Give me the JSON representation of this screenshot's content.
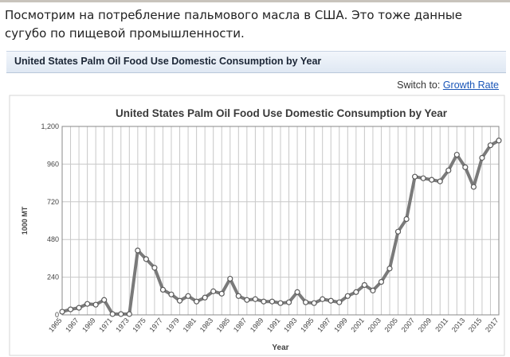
{
  "intro_text": "Посмотрим на потребление пальмового масла в США. Это тоже данные сугубо по пищевой промышленности.",
  "header": {
    "title": "United States Palm Oil Food Use Domestic Consumption by Year"
  },
  "switch": {
    "label": "Switch to:",
    "link": "Growth Rate"
  },
  "colors": {
    "line": "#7a7a7a",
    "grid": "#c8c8c8",
    "header_bg": "#dfe8f3",
    "link": "#1a56b8"
  },
  "chart_data": {
    "type": "line",
    "title": "United States Palm Oil Food Use Domestic Consumption by Year",
    "xlabel": "Year",
    "ylabel": "1000 MT",
    "ylim": [
      0,
      1200
    ],
    "yticks": [
      "1,200",
      "960",
      "720",
      "480",
      "240",
      "0"
    ],
    "xticks": [
      "1965",
      "1967",
      "1969",
      "1971",
      "1973",
      "1975",
      "1977",
      "1979",
      "1981",
      "1983",
      "1985",
      "1987",
      "1989",
      "1991",
      "1993",
      "1995",
      "1997",
      "1999",
      "2001",
      "2003",
      "2005",
      "2007",
      "2009",
      "2011",
      "2013",
      "2015",
      "2017"
    ],
    "grid": true,
    "x": [
      1965,
      1966,
      1967,
      1968,
      1969,
      1970,
      1971,
      1972,
      1973,
      1974,
      1975,
      1976,
      1977,
      1978,
      1979,
      1980,
      1981,
      1982,
      1983,
      1984,
      1985,
      1986,
      1987,
      1988,
      1989,
      1990,
      1991,
      1992,
      1993,
      1994,
      1995,
      1996,
      1997,
      1998,
      1999,
      2000,
      2001,
      2002,
      2003,
      2004,
      2005,
      2006,
      2007,
      2008,
      2009,
      2010,
      2011,
      2012,
      2013,
      2014,
      2015,
      2016,
      2017
    ],
    "values": [
      20,
      35,
      45,
      70,
      65,
      95,
      5,
      5,
      5,
      410,
      355,
      300,
      160,
      130,
      90,
      120,
      85,
      110,
      150,
      135,
      230,
      120,
      95,
      100,
      85,
      85,
      75,
      80,
      145,
      80,
      75,
      100,
      90,
      80,
      120,
      145,
      190,
      155,
      210,
      295,
      530,
      610,
      880,
      870,
      860,
      850,
      920,
      1020,
      940,
      815,
      1000,
      1080,
      1110
    ]
  }
}
